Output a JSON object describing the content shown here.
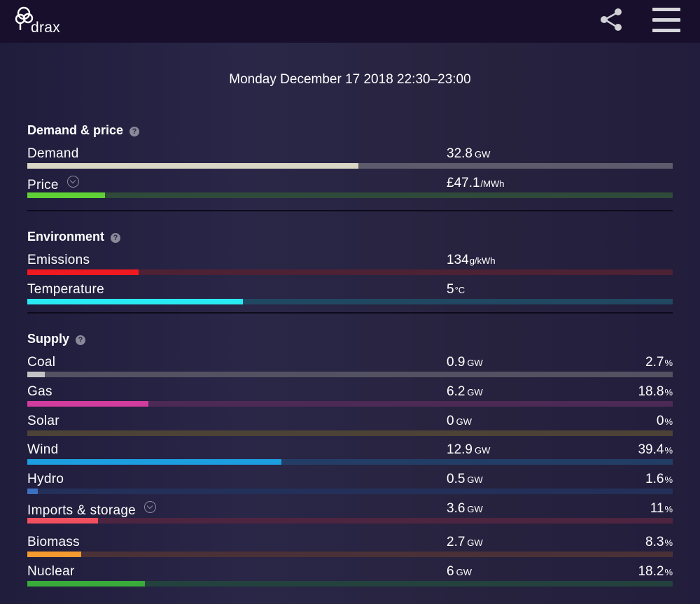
{
  "header": {
    "logo_text": "drax",
    "share_icon": "share-icon",
    "menu_icon": "hamburger-menu-icon"
  },
  "datetime": "Monday December 17 2018 22:30–23:00",
  "sections": {
    "demand_price": {
      "title": "Demand & price",
      "help": "?",
      "rows": [
        {
          "label": "Demand",
          "value": "32.8",
          "unit": "GW",
          "fraction": 0.513,
          "color": "#d8d6c4",
          "track": "#5e5c6c"
        },
        {
          "label": "Price",
          "value": "£47.1",
          "unit": "/MWh",
          "fraction": 0.12,
          "color": "#5fd136",
          "track": "#2f4a3a"
        }
      ]
    },
    "environment": {
      "title": "Environment",
      "help": "?",
      "rows": [
        {
          "label": "Emissions",
          "value": "134",
          "unit": "g/kWh",
          "fraction": 0.172,
          "color": "#f0191f",
          "track": "#4c2234"
        },
        {
          "label": "Temperature",
          "value": "5",
          "unit": "°C",
          "fraction": 0.334,
          "color": "#29eaf2",
          "track": "#214862"
        }
      ]
    },
    "supply": {
      "title": "Supply",
      "help": "?",
      "rows": [
        {
          "label": "Coal",
          "value": "0.9",
          "unit": "GW",
          "pct": "2.7",
          "pct_unit": "%",
          "fraction": 0.027,
          "color": "#c4c4c4",
          "track": "#545262"
        },
        {
          "label": "Gas",
          "value": "6.2",
          "unit": "GW",
          "pct": "18.8",
          "pct_unit": "%",
          "fraction": 0.188,
          "color": "#d13c9e",
          "track": "#4d2a56"
        },
        {
          "label": "Solar",
          "value": "0",
          "unit": "GW",
          "pct": "0",
          "pct_unit": "%",
          "fraction": 0,
          "color": "#f0c030",
          "track": "#4c4236"
        },
        {
          "label": "Wind",
          "value": "12.9",
          "unit": "GW",
          "pct": "39.4",
          "pct_unit": "%",
          "fraction": 0.394,
          "color": "#1c9ee0",
          "track": "#233e66"
        },
        {
          "label": "Hydro",
          "value": "0.5",
          "unit": "GW",
          "pct": "1.6",
          "pct_unit": "%",
          "fraction": 0.016,
          "color": "#3c6fc0",
          "track": "#233059"
        },
        {
          "label": "Imports & storage",
          "value": "3.6",
          "unit": "GW",
          "pct": "11",
          "pct_unit": "%",
          "fraction": 0.11,
          "color": "#f2505f",
          "track": "#4e2540"
        },
        {
          "label": "Biomass",
          "value": "2.7",
          "unit": "GW",
          "pct": "8.3",
          "pct_unit": "%",
          "fraction": 0.083,
          "color": "#f49a2f",
          "track": "#4a3138"
        },
        {
          "label": "Nuclear",
          "value": "6",
          "unit": "GW",
          "pct": "18.2",
          "pct_unit": "%",
          "fraction": 0.182,
          "color": "#39ab3a",
          "track": "#23423d"
        }
      ]
    }
  }
}
